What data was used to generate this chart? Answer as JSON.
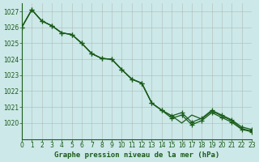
{
  "title": "Graphe pression niveau de la mer (hPa)",
  "background_color": "#cce8e8",
  "plot_bg_color": "#cce8e8",
  "grid_color": "#aaaaaa",
  "line_color": "#1a5c1a",
  "marker_color": "#1a5c1a",
  "x_values": [
    0,
    1,
    2,
    3,
    4,
    5,
    6,
    7,
    8,
    9,
    10,
    11,
    12,
    13,
    14,
    15,
    16,
    17,
    18,
    19,
    20,
    21,
    22,
    23
  ],
  "series1": [
    1026.0,
    1027.1,
    1026.4,
    1026.1,
    1025.65,
    1025.55,
    1025.0,
    1024.35,
    1024.05,
    1024.0,
    1023.35,
    1022.75,
    1022.5,
    1021.25,
    1020.8,
    1020.45,
    1020.65,
    1020.05,
    1020.3,
    1020.8,
    1020.5,
    1020.2,
    1019.75,
    1019.6
  ],
  "series2": [
    1026.0,
    1027.1,
    1026.4,
    1026.1,
    1025.65,
    1025.55,
    1025.0,
    1024.35,
    1024.05,
    1024.0,
    1023.35,
    1022.75,
    1022.5,
    1021.25,
    1020.8,
    1020.45,
    1020.65,
    1020.05,
    1020.3,
    1020.8,
    1020.5,
    1020.2,
    1019.75,
    1019.6
  ],
  "series3": [
    1026.0,
    1027.1,
    1026.35,
    1026.05,
    1025.55,
    1025.45,
    1024.85,
    1024.25,
    1023.95,
    1023.9,
    1023.25,
    1022.7,
    1022.45,
    1021.15,
    1020.7,
    1020.35,
    1020.05,
    1020.0,
    1020.25,
    1020.75,
    1020.45,
    1020.15,
    1019.65,
    1019.5
  ],
  "ylim": [
    1019.0,
    1027.5
  ],
  "yticks": [
    1020,
    1021,
    1022,
    1023,
    1024,
    1025,
    1026,
    1027
  ],
  "xlim": [
    0,
    23
  ],
  "xticks": [
    0,
    1,
    2,
    3,
    4,
    5,
    6,
    7,
    8,
    9,
    10,
    11,
    12,
    13,
    14,
    15,
    16,
    17,
    18,
    19,
    20,
    21,
    22,
    23
  ],
  "xlabel_fontsize": 6.5,
  "tick_fontsize": 5.5
}
